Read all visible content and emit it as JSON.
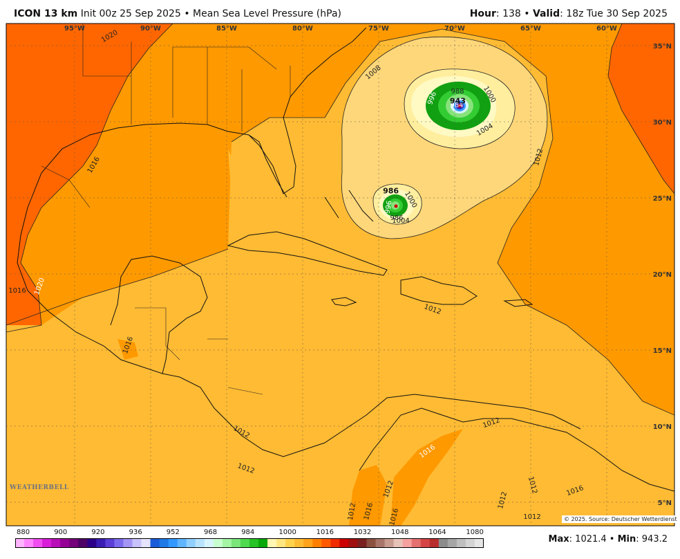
{
  "header": {
    "model": "ICON 13 km",
    "init": "Init 00z 25 Sep 2025",
    "separator": "•",
    "field": "Mean Sea Level Pressure (hPa)",
    "hour_label": "Hour",
    "hour_value": ": 138",
    "valid_label": "Valid",
    "valid_value": ": 18z Tue 30 Sep 2025"
  },
  "map": {
    "longitude_labels": [
      "95°W",
      "90°W",
      "85°W",
      "80°W",
      "75°W",
      "70°W",
      "65°W",
      "60°W"
    ],
    "latitude_labels": [
      "35°N",
      "30°N",
      "25°N",
      "20°N",
      "15°N",
      "10°N",
      "5°N"
    ],
    "contour_labels": [
      "1020",
      "1016",
      "1016",
      "1020",
      "1016",
      "1016",
      "1008",
      "1012",
      "1004",
      "1000",
      "996",
      "988",
      "984",
      "1004",
      "1000",
      "996",
      "986",
      "1012",
      "1012",
      "1012",
      "1012",
      "1016",
      "1012",
      "1012",
      "1012",
      "1012",
      "1016",
      "1016",
      "1012"
    ],
    "storm_centers": [
      {
        "label": "943",
        "lon": -69.8,
        "lat": 31.2
      },
      {
        "label": "986",
        "lon": -74.2,
        "lat": 25.3
      }
    ],
    "colors": {
      "p1020": "#ff6600",
      "p1016": "#ff9900",
      "p1012": "#ffbb33",
      "p1008": "#fed77a",
      "p1004": "#ffee9e",
      "p1000": "#fff9c4",
      "green_dark": "#11a011",
      "green_mid": "#33cc33",
      "green_light": "#88e27c",
      "coast": "#111111"
    }
  },
  "colorbar": {
    "labels": [
      "880",
      "900",
      "920",
      "936",
      "952",
      "968",
      "984",
      "1000",
      "1016",
      "1032",
      "1048",
      "1064",
      "1080"
    ],
    "colors": [
      "#ffb4ff",
      "#ff83ff",
      "#f04df0",
      "#d91ed9",
      "#b80fb8",
      "#960096",
      "#74007a",
      "#4d0066",
      "#2d0088",
      "#3b1db3",
      "#5c3fd6",
      "#7d6bed",
      "#a495f5",
      "#c8c2fb",
      "#e5e3fd",
      "#1a5bd9",
      "#1f7ae6",
      "#3399ff",
      "#60b5ff",
      "#91d0ff",
      "#b9e4ff",
      "#d8f4ff",
      "#c8ffd0",
      "#a4f5a4",
      "#7ae67a",
      "#4fd94f",
      "#26c226",
      "#08a808",
      "#fff6b3",
      "#ffe680",
      "#ffd24d",
      "#ffbb33",
      "#ffa31a",
      "#ff8000",
      "#ff5a00",
      "#f02c00",
      "#cc0000",
      "#a01010",
      "#7a2020",
      "#8c5040",
      "#a8756a",
      "#c89c90",
      "#e7c2b8",
      "#f6a0a0",
      "#e57070",
      "#d64545",
      "#b82d2d",
      "#8c8c8c",
      "#a6a6a6",
      "#bfbfbf",
      "#d4d4d4",
      "#e6e6e6"
    ]
  },
  "footer": {
    "copyright": "© 2025. Source: Deutscher Wetterdienst",
    "max_label": "Max",
    "max_value": ": 1021.4",
    "dot": "•",
    "min_label": "Min",
    "min_value": ": 943.2",
    "logo": "WEATHERBELL"
  }
}
